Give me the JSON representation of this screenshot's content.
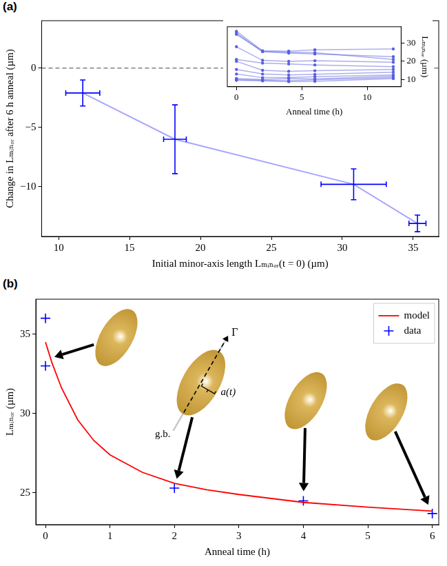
{
  "chart_data": [
    {
      "type": "scatter",
      "panel": "(a)",
      "x_label": "Initial minor-axis length Lₘᵢₙₒᵣ(t = 0) (µm)",
      "y_label": "Change in Lₘᵢₙₒᵣ after 6 h anneal (µm)",
      "x": [
        11.7,
        18.2,
        30.8,
        35.3
      ],
      "x_error": [
        1.2,
        0.8,
        2.3,
        0.6
      ],
      "values": [
        -2.1,
        -6.0,
        -9.8,
        -13.1
      ],
      "y_error": [
        1.1,
        2.9,
        1.3,
        0.7
      ],
      "color": "#0000ff",
      "line_style": "solid",
      "reference_line": {
        "y": 0,
        "color": "#808080",
        "line_style": "dashed"
      },
      "xlim": [
        8.8,
        36.8
      ],
      "xticks": [
        10,
        15,
        20,
        25,
        30,
        35
      ],
      "ylim": [
        -14.2,
        4
      ],
      "yticks": [
        {
          "value": -10,
          "label": "−10"
        },
        {
          "value": -5,
          "label": "−5"
        },
        0
      ],
      "grid": false
    },
    {
      "type": "line",
      "x_label": "Anneal time (h)",
      "y_label": "Lₘᵢₙₒᵣ (µm)",
      "x": [
        0,
        2,
        4,
        6,
        12
      ],
      "color": "#5a60e0",
      "marker": "circle",
      "series": [
        {
          "values": [
            36.5,
            25.8,
            25.6,
            26.3,
            26.8
          ]
        },
        {
          "values": [
            35.5,
            25.3,
            24.5,
            24.0,
            22.5
          ]
        },
        {
          "values": [
            34.8,
            25.5,
            25.0,
            24.7,
            21.0
          ]
        },
        {
          "values": [
            28.0,
            20.5,
            20.0,
            20.3,
            19.5
          ]
        },
        {
          "values": [
            21.0,
            19.0,
            18.5,
            18.0,
            17.0
          ]
        },
        {
          "values": [
            20.0,
            15.0,
            14.5,
            14.8,
            15.5
          ]
        },
        {
          "values": [
            15.5,
            13.0,
            12.5,
            12.8,
            14.0
          ]
        },
        {
          "values": [
            13.0,
            11.0,
            11.0,
            11.5,
            12.5
          ]
        },
        {
          "values": [
            10.5,
            10.0,
            10.5,
            10.3,
            11.8
          ]
        },
        {
          "values": [
            10.0,
            9.5,
            9.3,
            9.8,
            11.0
          ]
        },
        {
          "values": [
            9.5,
            9.2,
            8.8,
            9.0,
            10.5
          ]
        }
      ],
      "xlim": [
        -0.7,
        12.6
      ],
      "xticks": [
        0,
        5,
        10
      ],
      "ylim": [
        6,
        39
      ],
      "yticks": [
        10,
        20,
        30
      ],
      "grid": false
    },
    {
      "type": "line",
      "panel": "(b)",
      "x_label": "Anneal time (h)",
      "y_label": "Lₘᵢₙₒᵣ (µm)",
      "series": [
        {
          "name": "model",
          "type": "line",
          "color": "#ff0000",
          "line_style": "solid",
          "x": [
            0,
            0.1,
            0.25,
            0.5,
            0.75,
            1,
            1.5,
            2,
            2.5,
            3,
            4,
            5,
            6
          ],
          "values": [
            34.5,
            33.2,
            31.6,
            29.6,
            28.3,
            27.4,
            26.3,
            25.6,
            25.2,
            24.9,
            24.4,
            24.1,
            23.85
          ]
        },
        {
          "name": "data",
          "type": "scatter",
          "color": "#0000ff",
          "marker": "plus",
          "x": [
            0,
            0,
            2,
            4,
            6
          ],
          "values": [
            36.0,
            33.0,
            25.3,
            24.5,
            23.7
          ]
        }
      ],
      "xlim": [
        -0.15,
        6.1
      ],
      "xticks": [
        0,
        1,
        2,
        3,
        4,
        5,
        6
      ],
      "ylim": [
        23,
        37.2
      ],
      "yticks": [
        25,
        30,
        35
      ],
      "grid": false,
      "legend": "upper right",
      "annotations": [
        "Γ",
        "a(t)",
        "g.b."
      ]
    }
  ]
}
